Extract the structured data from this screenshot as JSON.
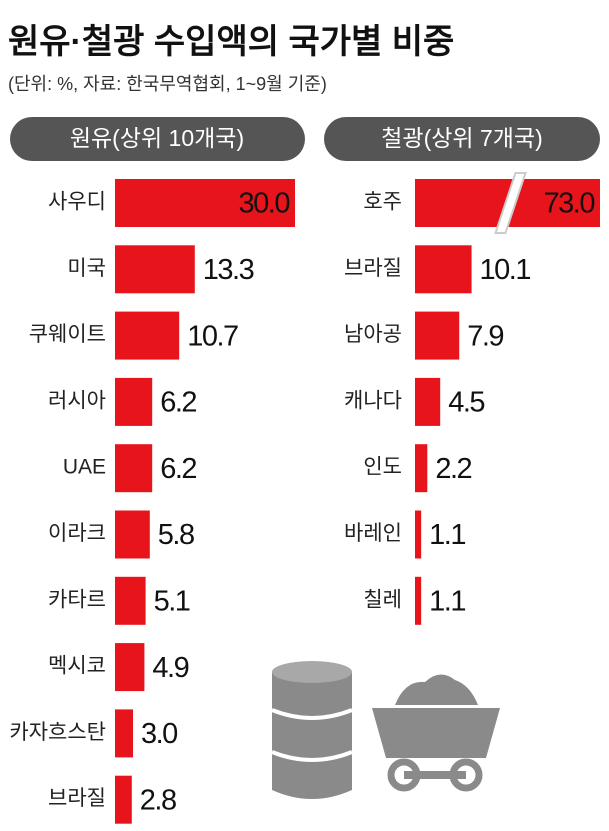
{
  "header": {
    "title": "원유·철광 수입액의 국가별 비중",
    "subtitle": "(단위: %, 자료: 한국무역협회, 1~9월 기준)"
  },
  "chart_data": [
    {
      "type": "bar",
      "orientation": "horizontal",
      "title": "원유(상위 10개국)",
      "categories": [
        "사우디",
        "미국",
        "쿠웨이트",
        "러시아",
        "UAE",
        "이라크",
        "카타르",
        "멕시코",
        "카자흐스탄",
        "브라질"
      ],
      "values": [
        30,
        13.3,
        10.7,
        6.2,
        6.2,
        5.8,
        5.1,
        4.9,
        3,
        2.8
      ],
      "value_labels": [
        "30.0",
        "13.3",
        "10.7",
        "6.2",
        "6.2",
        "5.8",
        "5.1",
        "4.9",
        "3.0",
        "2.8"
      ],
      "color": "#e8141c"
    },
    {
      "type": "bar",
      "orientation": "horizontal",
      "title": "철광(상위 7개국)",
      "categories": [
        "호주",
        "브라질",
        "남아공",
        "캐나다",
        "인도",
        "바레인",
        "칠레"
      ],
      "values": [
        73,
        10.1,
        7.9,
        4.5,
        2.2,
        1.1,
        1.1
      ],
      "value_labels": [
        "73.0",
        "10.1",
        "7.9",
        "4.5",
        "2.2",
        "1.1",
        "1.1"
      ],
      "color": "#e8141c"
    }
  ]
}
